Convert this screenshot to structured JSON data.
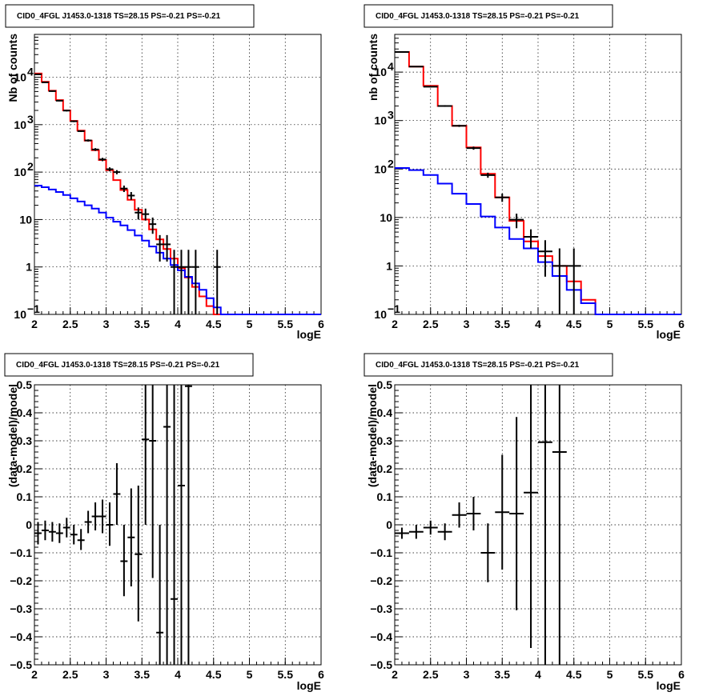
{
  "chart_data": [
    {
      "id": "tl",
      "type": "line",
      "title": "CID0_4FGL J1453.0-1318 TS=28.15 PS=-0.21 PS=-0.21",
      "xlabel": "logE",
      "ylabel": "Nb of counts",
      "xlim": [
        2,
        6
      ],
      "ylim": [
        0.1,
        80000
      ],
      "yscale": "log",
      "grid": true,
      "xticks": [
        "2",
        "2.5",
        "3",
        "3.5",
        "4",
        "4.5",
        "5",
        "5.5",
        "6"
      ],
      "yticks": [
        {
          "v": 0.1,
          "label": "10",
          "sup": "−1"
        },
        {
          "v": 1,
          "label": "1",
          "sup": ""
        },
        {
          "v": 10,
          "label": "10",
          "sup": ""
        },
        {
          "v": 100,
          "label": "10",
          "sup": "2"
        },
        {
          "v": 1000,
          "label": "10",
          "sup": "3"
        },
        {
          "v": 10000,
          "label": "10",
          "sup": "4"
        }
      ],
      "bin_edges": [
        2.0,
        2.1,
        2.2,
        2.3,
        2.4,
        2.5,
        2.6,
        2.7,
        2.8,
        2.9,
        3.0,
        3.1,
        3.2,
        3.3,
        3.4,
        3.5,
        3.6,
        3.7,
        3.8,
        3.9,
        4.0,
        4.1,
        4.2,
        4.3,
        4.4,
        4.5,
        4.6,
        4.7,
        4.8,
        4.9,
        5.0,
        5.1,
        5.2,
        5.3,
        5.4,
        5.5,
        5.6,
        5.7,
        5.8,
        5.9,
        6.0
      ],
      "series": [
        {
          "color": "#ff0000",
          "values": [
            12000,
            8000,
            5200,
            3300,
            2000,
            1200,
            750,
            460,
            290,
            180,
            110,
            68,
            42,
            26,
            16,
            10,
            6.2,
            3.8,
            2.4,
            1.5,
            0.95,
            0.6,
            0.38,
            0.24,
            0.15,
            0.1,
            0.1,
            0.1,
            0.1,
            0.1,
            0.1,
            0.1,
            0.1,
            0.1,
            0.1,
            0.1,
            0.1,
            0.1,
            0.1,
            0.1
          ]
        },
        {
          "color": "#0000ff",
          "values": [
            52,
            48,
            43,
            38,
            33,
            28,
            24,
            20,
            17,
            14,
            11,
            9,
            7.5,
            6,
            4.6,
            3.6,
            2.7,
            2.0,
            1.5,
            1.1,
            0.85,
            0.62,
            0.45,
            0.33,
            0.22,
            0.14,
            0.1,
            0.1,
            0.1,
            0.1,
            0.1,
            0.1,
            0.1,
            0.1,
            0.1,
            0.1,
            0.1,
            0.1,
            0.1,
            0.1
          ]
        }
      ],
      "points": [
        {
          "x": 2.05,
          "y": 11500,
          "lo": 11300,
          "hi": 11700
        },
        {
          "x": 2.15,
          "y": 7800,
          "lo": 7600,
          "hi": 8000
        },
        {
          "x": 2.25,
          "y": 5100,
          "lo": 4950,
          "hi": 5250
        },
        {
          "x": 2.35,
          "y": 3200,
          "lo": 3100,
          "hi": 3300
        },
        {
          "x": 2.45,
          "y": 1980,
          "lo": 1900,
          "hi": 2060
        },
        {
          "x": 2.55,
          "y": 1180,
          "lo": 1130,
          "hi": 1230
        },
        {
          "x": 2.65,
          "y": 730,
          "lo": 700,
          "hi": 760
        },
        {
          "x": 2.75,
          "y": 465,
          "lo": 440,
          "hi": 490
        },
        {
          "x": 2.85,
          "y": 300,
          "lo": 280,
          "hi": 320
        },
        {
          "x": 2.95,
          "y": 185,
          "lo": 170,
          "hi": 200
        },
        {
          "x": 3.05,
          "y": 115,
          "lo": 104,
          "hi": 126
        },
        {
          "x": 3.15,
          "y": 100,
          "lo": 90,
          "hi": 110
        },
        {
          "x": 3.25,
          "y": 45,
          "lo": 38,
          "hi": 52
        },
        {
          "x": 3.35,
          "y": 32,
          "lo": 26,
          "hi": 38
        },
        {
          "x": 3.45,
          "y": 14,
          "lo": 10,
          "hi": 18
        },
        {
          "x": 3.55,
          "y": 13,
          "lo": 9.5,
          "hi": 17
        },
        {
          "x": 3.65,
          "y": 8,
          "lo": 5,
          "hi": 11
        },
        {
          "x": 3.75,
          "y": 3,
          "lo": 1.3,
          "hi": 4.7
        },
        {
          "x": 3.85,
          "y": 3,
          "lo": 1.3,
          "hi": 4.7
        },
        {
          "x": 3.95,
          "y": 1,
          "lo": 0.1,
          "hi": 2.3
        },
        {
          "x": 4.05,
          "y": 1,
          "lo": 0.1,
          "hi": 2.3
        },
        {
          "x": 4.15,
          "y": 1,
          "lo": 0.1,
          "hi": 2.3
        },
        {
          "x": 4.25,
          "y": 1,
          "lo": 0.1,
          "hi": 2.3
        },
        {
          "x": 4.55,
          "y": 1,
          "lo": 0.1,
          "hi": 2.3
        }
      ]
    },
    {
      "id": "tr",
      "type": "line",
      "title": "CID0_4FGL J1453.0-1318 TS=28.15 PS=-0.21 PS=-0.21",
      "xlabel": "logE",
      "ylabel": "nb of counts",
      "xlim": [
        2,
        6
      ],
      "ylim": [
        0.1,
        60000
      ],
      "yscale": "log",
      "grid": true,
      "xticks": [
        "2",
        "2.5",
        "3",
        "3.5",
        "4",
        "4.5",
        "5",
        "5.5",
        "6"
      ],
      "yticks": [
        {
          "v": 0.1,
          "label": "10",
          "sup": "−1"
        },
        {
          "v": 1,
          "label": "1",
          "sup": ""
        },
        {
          "v": 10,
          "label": "10",
          "sup": ""
        },
        {
          "v": 100,
          "label": "10",
          "sup": "2"
        },
        {
          "v": 1000,
          "label": "10",
          "sup": "3"
        },
        {
          "v": 10000,
          "label": "10",
          "sup": "4"
        }
      ],
      "bin_edges": [
        2.0,
        2.2,
        2.4,
        2.6,
        2.8,
        3.0,
        3.2,
        3.4,
        3.6,
        3.8,
        4.0,
        4.2,
        4.4,
        4.6,
        4.8,
        5.0,
        5.2,
        5.4,
        5.6,
        5.8,
        6.0
      ],
      "series": [
        {
          "color": "#ff0000",
          "values": [
            26000,
            13000,
            5200,
            2000,
            780,
            280,
            80,
            26,
            8.5,
            3.2,
            1.6,
            1.0,
            0.48,
            0.2,
            0.1,
            0.1,
            0.1,
            0.1,
            0.1,
            0.1
          ]
        },
        {
          "color": "#0000ff",
          "values": [
            105,
            95,
            75,
            50,
            31,
            19,
            10.5,
            6.2,
            3.6,
            2.3,
            1.2,
            0.62,
            0.32,
            0.17,
            0.1,
            0.1,
            0.1,
            0.1,
            0.1,
            0.1
          ]
        }
      ],
      "points": [
        {
          "x": 2.1,
          "y": 26000,
          "lo": 25700,
          "hi": 26300
        },
        {
          "x": 2.3,
          "y": 13000,
          "lo": 12800,
          "hi": 13200
        },
        {
          "x": 2.5,
          "y": 5000,
          "lo": 4850,
          "hi": 5150
        },
        {
          "x": 2.7,
          "y": 2000,
          "lo": 1920,
          "hi": 2080
        },
        {
          "x": 2.9,
          "y": 780,
          "lo": 740,
          "hi": 820
        },
        {
          "x": 3.1,
          "y": 270,
          "lo": 250,
          "hi": 290
        },
        {
          "x": 3.3,
          "y": 75,
          "lo": 66,
          "hi": 84
        },
        {
          "x": 3.5,
          "y": 26,
          "lo": 21,
          "hi": 31
        },
        {
          "x": 3.7,
          "y": 9,
          "lo": 6,
          "hi": 12
        },
        {
          "x": 3.9,
          "y": 4,
          "lo": 2.3,
          "hi": 5.7
        },
        {
          "x": 4.1,
          "y": 2,
          "lo": 0.6,
          "hi": 3.4
        },
        {
          "x": 4.3,
          "y": 1,
          "lo": 0.1,
          "hi": 2.3
        },
        {
          "x": 4.5,
          "y": 1,
          "lo": 0.1,
          "hi": 2.3
        }
      ]
    },
    {
      "id": "bl",
      "type": "scatter",
      "title": "CID0_4FGL J1453.0-1318 TS=28.15 PS=-0.21 PS=-0.21",
      "xlabel": "logE",
      "ylabel": "(data-model)/model",
      "xlim": [
        2,
        6
      ],
      "ylim": [
        -0.5,
        0.5
      ],
      "yscale": "linear",
      "grid": true,
      "xticks": [
        "2",
        "2.5",
        "3",
        "3.5",
        "4",
        "4.5",
        "5",
        "5.5",
        "6"
      ],
      "yticks": [
        {
          "v": -0.5,
          "label": "−0.5",
          "sup": ""
        },
        {
          "v": -0.4,
          "label": "−0.4",
          "sup": ""
        },
        {
          "v": -0.3,
          "label": "−0.3",
          "sup": ""
        },
        {
          "v": -0.2,
          "label": "−0.2",
          "sup": ""
        },
        {
          "v": -0.1,
          "label": "−0.1",
          "sup": ""
        },
        {
          "v": 0,
          "label": "0",
          "sup": ""
        },
        {
          "v": 0.1,
          "label": "0.1",
          "sup": ""
        },
        {
          "v": 0.2,
          "label": "0.2",
          "sup": ""
        },
        {
          "v": 0.3,
          "label": "0.3",
          "sup": ""
        },
        {
          "v": 0.4,
          "label": "0.4",
          "sup": ""
        },
        {
          "v": 0.5,
          "label": "0.5",
          "sup": ""
        }
      ],
      "points": [
        {
          "x": 2.05,
          "y": -0.03,
          "lo": -0.07,
          "hi": 0.01,
          "hw": 0.05
        },
        {
          "x": 2.15,
          "y": -0.02,
          "lo": -0.055,
          "hi": 0.015,
          "hw": 0.05
        },
        {
          "x": 2.25,
          "y": -0.025,
          "lo": -0.06,
          "hi": 0.01,
          "hw": 0.05
        },
        {
          "x": 2.35,
          "y": -0.03,
          "lo": -0.065,
          "hi": 0.005,
          "hw": 0.05
        },
        {
          "x": 2.45,
          "y": -0.01,
          "lo": -0.045,
          "hi": 0.025,
          "hw": 0.05
        },
        {
          "x": 2.55,
          "y": -0.035,
          "lo": -0.07,
          "hi": 0.0,
          "hw": 0.05
        },
        {
          "x": 2.65,
          "y": -0.055,
          "lo": -0.09,
          "hi": -0.015,
          "hw": 0.05
        },
        {
          "x": 2.75,
          "y": 0.01,
          "lo": -0.03,
          "hi": 0.05,
          "hw": 0.05
        },
        {
          "x": 2.85,
          "y": 0.03,
          "lo": -0.02,
          "hi": 0.08,
          "hw": 0.05
        },
        {
          "x": 2.95,
          "y": 0.03,
          "lo": -0.03,
          "hi": 0.09,
          "hw": 0.05
        },
        {
          "x": 3.05,
          "y": 0.0,
          "lo": -0.075,
          "hi": 0.08,
          "hw": 0.05
        },
        {
          "x": 3.15,
          "y": 0.11,
          "lo": 0.0,
          "hi": 0.22,
          "hw": 0.05
        },
        {
          "x": 3.25,
          "y": -0.13,
          "lo": -0.255,
          "hi": -0.0,
          "hw": 0.05
        },
        {
          "x": 3.35,
          "y": -0.045,
          "lo": -0.22,
          "hi": 0.13,
          "hw": 0.05
        },
        {
          "x": 3.45,
          "y": -0.105,
          "lo": -0.345,
          "hi": 0.14,
          "hw": 0.05
        },
        {
          "x": 3.55,
          "y": 0.305,
          "lo": 0.0,
          "hi": 0.5,
          "hw": 0.05
        },
        {
          "x": 3.65,
          "y": 0.3,
          "lo": -0.19,
          "hi": 0.5,
          "hw": 0.05
        },
        {
          "x": 3.75,
          "y": -0.385,
          "lo": -0.5,
          "hi": 0.0,
          "hw": 0.05
        },
        {
          "x": 3.85,
          "y": 0.35,
          "lo": -0.5,
          "hi": 0.5,
          "hw": 0.05
        },
        {
          "x": 3.95,
          "y": -0.265,
          "lo": -0.5,
          "hi": 0.5,
          "hw": 0.05
        },
        {
          "x": 4.05,
          "y": 0.14,
          "lo": -0.5,
          "hi": 0.5,
          "hw": 0.05
        },
        {
          "x": 4.15,
          "y": 0.495,
          "lo": -0.5,
          "hi": 0.5,
          "hw": 0.05
        }
      ]
    },
    {
      "id": "br",
      "type": "scatter",
      "title": "CID0_4FGL J1453.0-1318 TS=28.15 PS=-0.21 PS=-0.21",
      "xlabel": "logE",
      "ylabel": "(data-model)/model",
      "xlim": [
        2,
        6
      ],
      "ylim": [
        -0.5,
        0.5
      ],
      "yscale": "linear",
      "grid": true,
      "xticks": [
        "2",
        "2.5",
        "3",
        "3.5",
        "4",
        "4.5",
        "5",
        "5.5",
        "6"
      ],
      "yticks": [
        {
          "v": -0.5,
          "label": "−0.5",
          "sup": ""
        },
        {
          "v": -0.4,
          "label": "−0.4",
          "sup": ""
        },
        {
          "v": -0.3,
          "label": "−0.3",
          "sup": ""
        },
        {
          "v": -0.2,
          "label": "−0.2",
          "sup": ""
        },
        {
          "v": -0.1,
          "label": "−0.1",
          "sup": ""
        },
        {
          "v": 0,
          "label": "0",
          "sup": ""
        },
        {
          "v": 0.1,
          "label": "0.1",
          "sup": ""
        },
        {
          "v": 0.2,
          "label": "0.2",
          "sup": ""
        },
        {
          "v": 0.3,
          "label": "0.3",
          "sup": ""
        },
        {
          "v": 0.4,
          "label": "0.4",
          "sup": ""
        },
        {
          "v": 0.5,
          "label": "0.5",
          "sup": ""
        }
      ],
      "points": [
        {
          "x": 2.1,
          "y": -0.03,
          "lo": -0.05,
          "hi": -0.01,
          "hw": 0.1
        },
        {
          "x": 2.3,
          "y": -0.025,
          "lo": -0.05,
          "hi": 0.0,
          "hw": 0.1
        },
        {
          "x": 2.5,
          "y": -0.01,
          "lo": -0.035,
          "hi": 0.015,
          "hw": 0.1
        },
        {
          "x": 2.7,
          "y": -0.025,
          "lo": -0.055,
          "hi": 0.005,
          "hw": 0.1
        },
        {
          "x": 2.9,
          "y": 0.035,
          "lo": -0.01,
          "hi": 0.08,
          "hw": 0.1
        },
        {
          "x": 3.1,
          "y": 0.04,
          "lo": -0.02,
          "hi": 0.1,
          "hw": 0.1
        },
        {
          "x": 3.3,
          "y": -0.1,
          "lo": -0.205,
          "hi": 0.005,
          "hw": 0.1
        },
        {
          "x": 3.5,
          "y": 0.045,
          "lo": -0.16,
          "hi": 0.25,
          "hw": 0.1
        },
        {
          "x": 3.7,
          "y": 0.04,
          "lo": -0.305,
          "hi": 0.385,
          "hw": 0.1
        },
        {
          "x": 3.9,
          "y": 0.115,
          "lo": -0.44,
          "hi": 0.5,
          "hw": 0.1
        },
        {
          "x": 4.1,
          "y": 0.295,
          "lo": -0.5,
          "hi": 0.5,
          "hw": 0.1
        },
        {
          "x": 4.3,
          "y": 0.26,
          "lo": -0.5,
          "hi": 0.5,
          "hw": 0.1
        }
      ]
    }
  ]
}
